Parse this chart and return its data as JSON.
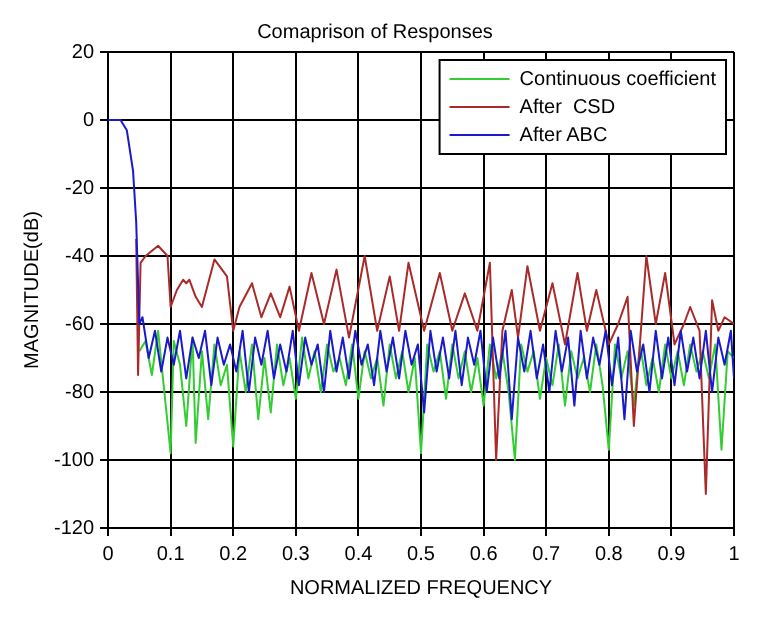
{
  "chart_data": {
    "type": "line",
    "title": "Comaprison of Responses",
    "xlabel": "NORMALIZED FREQUENCY",
    "ylabel": "MAGNITUDE(dB)",
    "xlim": [
      0,
      1
    ],
    "xticks": [
      0,
      0.1,
      0.2,
      0.3,
      0.4,
      0.5,
      0.6,
      0.7,
      0.8,
      0.9,
      1
    ],
    "ylim": [
      -120,
      20
    ],
    "yticks": [
      -120,
      -100,
      -80,
      -60,
      -40,
      -20,
      0,
      20
    ],
    "grid": true,
    "legend": "top right",
    "marker": "none",
    "line_style": "solid",
    "series": [
      {
        "name": "Continuous coefficient",
        "color": "#33cc33",
        "x": [
          0.05,
          0.06,
          0.07,
          0.08,
          0.09,
          0.1,
          0.105,
          0.115,
          0.125,
          0.135,
          0.14,
          0.15,
          0.16,
          0.17,
          0.18,
          0.19,
          0.2,
          0.21,
          0.22,
          0.23,
          0.24,
          0.25,
          0.26,
          0.27,
          0.28,
          0.29,
          0.3,
          0.31,
          0.32,
          0.33,
          0.34,
          0.35,
          0.36,
          0.37,
          0.38,
          0.39,
          0.4,
          0.41,
          0.42,
          0.43,
          0.44,
          0.45,
          0.46,
          0.47,
          0.48,
          0.49,
          0.5,
          0.51,
          0.52,
          0.53,
          0.54,
          0.55,
          0.56,
          0.57,
          0.58,
          0.59,
          0.6,
          0.61,
          0.62,
          0.63,
          0.64,
          0.65,
          0.66,
          0.67,
          0.68,
          0.69,
          0.7,
          0.71,
          0.72,
          0.73,
          0.74,
          0.75,
          0.76,
          0.77,
          0.78,
          0.79,
          0.8,
          0.81,
          0.82,
          0.83,
          0.84,
          0.85,
          0.86,
          0.87,
          0.88,
          0.89,
          0.9,
          0.91,
          0.92,
          0.93,
          0.94,
          0.95,
          0.96,
          0.97,
          0.98,
          0.99,
          1
        ],
        "values": [
          -68,
          -65,
          -75,
          -62,
          -80,
          -98,
          -65,
          -72,
          -90,
          -64,
          -95,
          -68,
          -88,
          -66,
          -78,
          -72,
          -96,
          -68,
          -80,
          -66,
          -88,
          -70,
          -86,
          -66,
          -78,
          -70,
          -82,
          -64,
          -76,
          -68,
          -80,
          -66,
          -74,
          -70,
          -78,
          -66,
          -82,
          -68,
          -76,
          -70,
          -84,
          -66,
          -76,
          -68,
          -80,
          -70,
          -98,
          -66,
          -74,
          -68,
          -82,
          -66,
          -76,
          -68,
          -80,
          -70,
          -84,
          -66,
          -76,
          -68,
          -80,
          -100,
          -66,
          -74,
          -68,
          -82,
          -70,
          -78,
          -66,
          -84,
          -68,
          -76,
          -70,
          -80,
          -66,
          -78,
          -97,
          -66,
          -76,
          -68,
          -84,
          -66,
          -78,
          -70,
          -80,
          -66,
          -76,
          -68,
          -78,
          -66,
          -74,
          -68,
          -76,
          -66,
          -97,
          -68,
          -70
        ]
      },
      {
        "name": "After  CSD",
        "color": "#aa2a2a",
        "x": [
          0.045,
          0.048,
          0.052,
          0.06,
          0.08,
          0.095,
          0.1,
          0.11,
          0.12,
          0.125,
          0.13,
          0.14,
          0.15,
          0.17,
          0.19,
          0.2,
          0.21,
          0.23,
          0.245,
          0.26,
          0.275,
          0.29,
          0.305,
          0.325,
          0.345,
          0.365,
          0.385,
          0.41,
          0.43,
          0.45,
          0.465,
          0.48,
          0.505,
          0.53,
          0.55,
          0.57,
          0.59,
          0.61,
          0.62,
          0.63,
          0.645,
          0.655,
          0.67,
          0.69,
          0.71,
          0.73,
          0.75,
          0.765,
          0.78,
          0.8,
          0.815,
          0.83,
          0.84,
          0.86,
          0.875,
          0.89,
          0.905,
          0.92,
          0.93,
          0.945,
          0.955,
          0.965,
          0.975,
          0.985,
          1
        ],
        "values": [
          -35,
          -75,
          -42,
          -40,
          -37,
          -40,
          -55,
          -50,
          -47,
          -48,
          -47,
          -52,
          -55,
          -41,
          -46,
          -62,
          -55,
          -48,
          -58,
          -51,
          -58,
          -49,
          -62,
          -45,
          -60,
          -44,
          -64,
          -40,
          -62,
          -46,
          -62,
          -42,
          -62,
          -45,
          -62,
          -51,
          -62,
          -42,
          -100,
          -62,
          -50,
          -64,
          -43,
          -62,
          -48,
          -66,
          -45,
          -62,
          -50,
          -66,
          -60,
          -52,
          -90,
          -40,
          -60,
          -45,
          -66,
          -60,
          -55,
          -62,
          -110,
          -53,
          -62,
          -58,
          -60
        ]
      },
      {
        "name": "After ABC",
        "color": "#1a1acc",
        "x": [
          0,
          0.02,
          0.03,
          0.04,
          0.045,
          0.05,
          0.055,
          0.065,
          0.075,
          0.085,
          0.095,
          0.105,
          0.115,
          0.125,
          0.135,
          0.145,
          0.155,
          0.165,
          0.175,
          0.185,
          0.195,
          0.205,
          0.215,
          0.225,
          0.235,
          0.245,
          0.255,
          0.265,
          0.275,
          0.285,
          0.295,
          0.305,
          0.315,
          0.325,
          0.335,
          0.345,
          0.355,
          0.365,
          0.375,
          0.385,
          0.395,
          0.405,
          0.415,
          0.425,
          0.435,
          0.445,
          0.455,
          0.465,
          0.475,
          0.485,
          0.495,
          0.505,
          0.515,
          0.525,
          0.535,
          0.545,
          0.555,
          0.565,
          0.575,
          0.585,
          0.595,
          0.605,
          0.615,
          0.625,
          0.635,
          0.645,
          0.655,
          0.665,
          0.675,
          0.685,
          0.695,
          0.705,
          0.715,
          0.725,
          0.735,
          0.745,
          0.755,
          0.765,
          0.775,
          0.785,
          0.795,
          0.805,
          0.815,
          0.825,
          0.835,
          0.845,
          0.855,
          0.865,
          0.875,
          0.885,
          0.895,
          0.905,
          0.915,
          0.925,
          0.935,
          0.945,
          0.955,
          0.965,
          0.975,
          0.985,
          0.995,
          1
        ],
        "values": [
          0,
          0,
          -3,
          -15,
          -30,
          -60,
          -58,
          -70,
          -62,
          -74,
          -64,
          -72,
          -62,
          -76,
          -64,
          -70,
          -62,
          -78,
          -64,
          -72,
          -66,
          -74,
          -62,
          -80,
          -64,
          -72,
          -62,
          -76,
          -66,
          -74,
          -62,
          -78,
          -64,
          -72,
          -66,
          -80,
          -62,
          -74,
          -64,
          -76,
          -62,
          -72,
          -66,
          -78,
          -62,
          -74,
          -64,
          -76,
          -62,
          -72,
          -66,
          -86,
          -62,
          -74,
          -64,
          -76,
          -62,
          -78,
          -64,
          -72,
          -62,
          -80,
          -64,
          -76,
          -62,
          -88,
          -64,
          -74,
          -62,
          -76,
          -66,
          -80,
          -62,
          -74,
          -64,
          -84,
          -62,
          -76,
          -64,
          -72,
          -62,
          -78,
          -64,
          -88,
          -62,
          -74,
          -66,
          -80,
          -62,
          -76,
          -64,
          -78,
          -62,
          -74,
          -64,
          -76,
          -62,
          -80,
          -64,
          -72,
          -62,
          -76
        ]
      }
    ]
  }
}
